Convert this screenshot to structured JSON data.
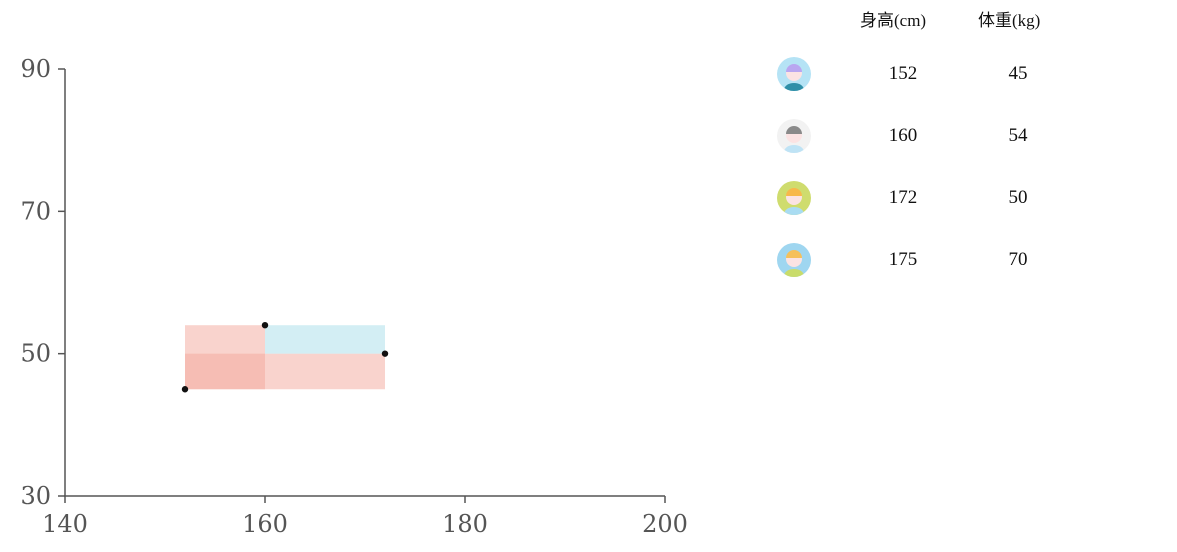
{
  "chart_data": {
    "type": "scatter",
    "xlim": [
      140,
      200
    ],
    "ylim": [
      30,
      90
    ],
    "x_ticks": [
      140,
      160,
      180,
      200
    ],
    "y_ticks": [
      30,
      50,
      70,
      90
    ],
    "points": [
      {
        "x": 152,
        "y": 45
      },
      {
        "x": 160,
        "y": 54
      },
      {
        "x": 172,
        "y": 50
      }
    ],
    "rectangles": [
      {
        "from": [
          152,
          45
        ],
        "to": [
          160,
          54
        ],
        "color": "#f4a89c"
      },
      {
        "from": [
          152,
          45
        ],
        "to": [
          172,
          50
        ],
        "color": "#f4a89c"
      },
      {
        "from": [
          160,
          54
        ],
        "to": [
          172,
          50
        ],
        "color": "#a8dde9"
      }
    ],
    "grid": false
  },
  "table": {
    "headers": [
      "身高(cm)",
      "体重(kg)"
    ],
    "rows": [
      {
        "avatar": "avatar-purple-hair-icon",
        "bg": "#b5e3f5",
        "hair": "#b9a6f0",
        "shirt": "#2f8fa8",
        "height": "152",
        "weight": "45"
      },
      {
        "avatar": "avatar-gray-hair-icon",
        "bg": "#f2f2f2",
        "hair": "#8a8a8a",
        "shirt": "#bfe3f5",
        "height": "160",
        "weight": "54"
      },
      {
        "avatar": "avatar-orange-hair-icon",
        "bg": "#cfdc6e",
        "hair": "#f7b84a",
        "shirt": "#a9dcf2",
        "height": "172",
        "weight": "50"
      },
      {
        "avatar": "avatar-blonde-hair-icon",
        "bg": "#9fd6f0",
        "hair": "#f5c05a",
        "shirt": "#c9dc6a",
        "height": "175",
        "weight": "70"
      }
    ]
  }
}
